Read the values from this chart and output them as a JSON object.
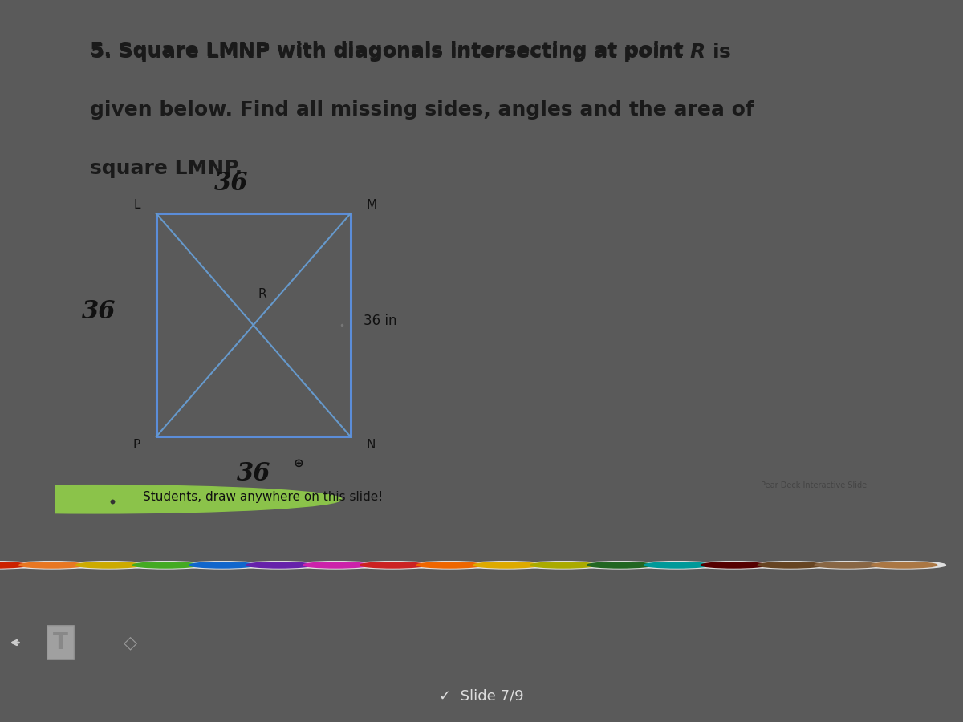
{
  "bg_outer": "#5a5a5a",
  "bg_slide": "#f2f1f0",
  "title_text_line1": "5. Square LMNP with diagonals intersecting at point ",
  "title_text_line1b": "R",
  "title_text_line1c": " is",
  "title_text_line2": "given below. Find all missing sides, angles and the area of",
  "title_text_line3": "square LMNP.",
  "title_color": "#1a1a1a",
  "title_fontsize": 18,
  "square_color": "#5b8dd9",
  "square_lw": 2.2,
  "diagonal_color": "#6699cc",
  "diagonal_lw": 1.5,
  "label_L": "L",
  "label_M": "M",
  "label_N": "N",
  "label_P": "P",
  "label_R": "R",
  "label_36_top": "36",
  "label_36_left": "36",
  "label_36_bottom": "36",
  "label_36in": "36 in",
  "students_text": "Students, draw anywhere on this slide!",
  "slide_text": "Slide 7/9",
  "toolbar_bg": "#999999",
  "circles_bg": "#787878",
  "tools_bg": "#686868",
  "black_bg": "#111111",
  "circle_colors_row1": [
    "#cc2200",
    "#e87722",
    "#ccaa00",
    "#44aa22",
    "#1166cc",
    "#6622aa",
    "#cc22aa",
    "#cc2222",
    "#ee6600",
    "#ddaa00",
    "#aaaa00",
    "#226622",
    "#009999",
    "#550000",
    "#664422",
    "#886644",
    "#aa7744"
  ],
  "circle_colors_row2": [
    "#cc0000",
    "#ee8800",
    "#ddcc00",
    "#55bb33",
    "#2277dd",
    "#7733bb",
    "#dd33bb",
    "#dd3333",
    "#ff7722",
    "#eebb00",
    "#bbbb00",
    "#337733",
    "#00aaaa",
    "#660000",
    "#775533",
    "#997755",
    "#bb8855"
  ]
}
